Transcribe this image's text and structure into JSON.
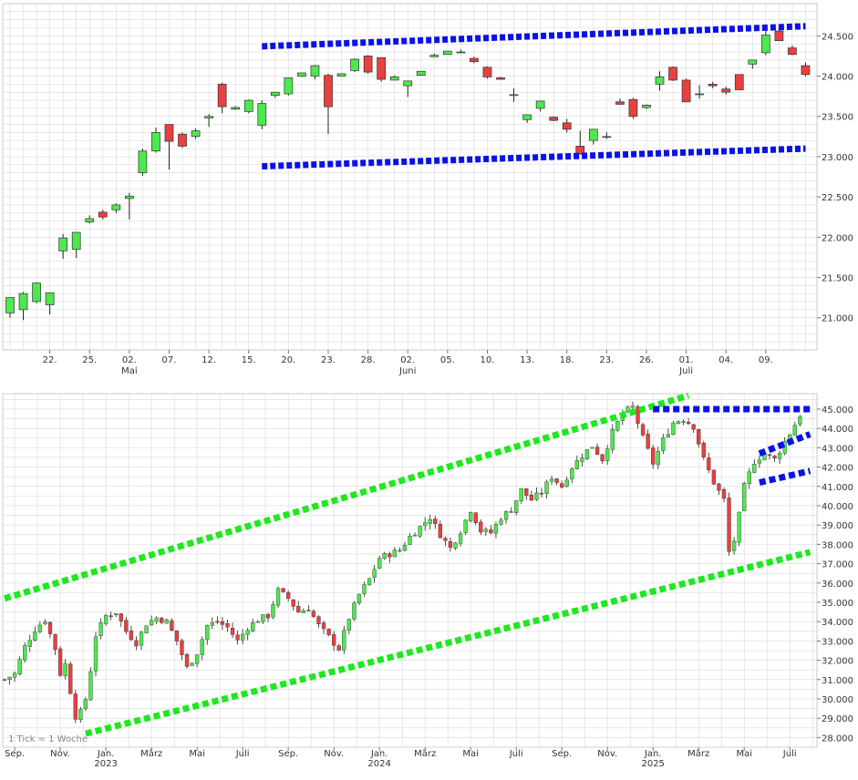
{
  "colors": {
    "bull": "#4de84d",
    "bear": "#e84040",
    "wick": "#222222",
    "grid": "#d9d9d9",
    "frame": "#c8c8c8",
    "blue_channel": "#0a12e8",
    "green_channel": "#1ee81e"
  },
  "chart_data": [
    {
      "type": "candlestick",
      "panel": "top",
      "yaxis_side": "right",
      "ylim": [
        20600,
        24900
      ],
      "grid": true,
      "y_ticks": [
        21000,
        21500,
        22000,
        22500,
        23000,
        23500,
        24000,
        24500
      ],
      "y_tick_labels": [
        "21.000",
        "21.500",
        "22.000",
        "22.500",
        "23.000",
        "23.500",
        "24.000",
        "24.500"
      ],
      "x_tick_labels": [
        {
          "day": "22.",
          "month": "",
          "i": 3
        },
        {
          "day": "25.",
          "month": "",
          "i": 6
        },
        {
          "day": "02.",
          "month": "Mai",
          "i": 9
        },
        {
          "day": "07.",
          "month": "",
          "i": 12
        },
        {
          "day": "12.",
          "month": "",
          "i": 15
        },
        {
          "day": "15.",
          "month": "",
          "i": 18
        },
        {
          "day": "20.",
          "month": "",
          "i": 21
        },
        {
          "day": "23.",
          "month": "",
          "i": 24
        },
        {
          "day": "28.",
          "month": "",
          "i": 27
        },
        {
          "day": "02.",
          "month": "Juni",
          "i": 30
        },
        {
          "day": "05.",
          "month": "",
          "i": 33
        },
        {
          "day": "10.",
          "month": "",
          "i": 36
        },
        {
          "day": "13.",
          "month": "",
          "i": 39
        },
        {
          "day": "18.",
          "month": "",
          "i": 42
        },
        {
          "day": "23.",
          "month": "",
          "i": 45
        },
        {
          "day": "26.",
          "month": "",
          "i": 48
        },
        {
          "day": "01.",
          "month": "Juli",
          "i": 51
        },
        {
          "day": "04.",
          "month": "",
          "i": 54
        },
        {
          "day": "09.",
          "month": "",
          "i": 57
        }
      ],
      "candles": [
        [
          21060,
          21250,
          21000,
          21250
        ],
        [
          21100,
          21320,
          20970,
          21300
        ],
        [
          21200,
          21440,
          21180,
          21430
        ],
        [
          21160,
          21300,
          21040,
          21310
        ],
        [
          21830,
          22040,
          21730,
          21990
        ],
        [
          21850,
          22060,
          21740,
          22060
        ],
        [
          22190,
          22270,
          22170,
          22230
        ],
        [
          22310,
          22340,
          22220,
          22250
        ],
        [
          22340,
          22420,
          22300,
          22400
        ],
        [
          22480,
          22550,
          22220,
          22510
        ],
        [
          22800,
          23100,
          22760,
          23070
        ],
        [
          23070,
          23360,
          23050,
          23300
        ],
        [
          23400,
          23400,
          22840,
          23190
        ],
        [
          23280,
          23300,
          23110,
          23130
        ],
        [
          23250,
          23350,
          23220,
          23320
        ],
        [
          23480,
          23530,
          23370,
          23500
        ],
        [
          23900,
          23920,
          23540,
          23620
        ],
        [
          23590,
          23630,
          23580,
          23610
        ],
        [
          23560,
          23710,
          23540,
          23700
        ],
        [
          23390,
          23700,
          23340,
          23660
        ],
        [
          23760,
          23760,
          23730,
          23800
        ],
        [
          23780,
          23970,
          23760,
          23980
        ],
        [
          24000,
          24020,
          23990,
          24040
        ],
        [
          24000,
          24140,
          23960,
          24130
        ],
        [
          24010,
          24030,
          23280,
          23620
        ],
        [
          24000,
          24030,
          24010,
          24030
        ],
        [
          24070,
          24220,
          24050,
          24210
        ],
        [
          24250,
          24260,
          24030,
          24050
        ],
        [
          24230,
          24230,
          23930,
          23960
        ],
        [
          23950,
          24010,
          23950,
          23990
        ],
        [
          23880,
          23940,
          23740,
          23940
        ],
        [
          24010,
          24050,
          24020,
          24060
        ],
        [
          24240,
          24280,
          24240,
          24260
        ],
        [
          24270,
          24300,
          24300,
          24310
        ],
        [
          24300,
          24330,
          24290,
          24300
        ],
        [
          24220,
          24240,
          24160,
          24180
        ],
        [
          24110,
          24120,
          23970,
          23990
        ],
        [
          23980,
          23990,
          23960,
          23960
        ],
        [
          23770,
          23850,
          23680,
          23770
        ],
        [
          23460,
          23520,
          23420,
          23520
        ],
        [
          23600,
          23680,
          23560,
          23690
        ],
        [
          23490,
          23500,
          23440,
          23450
        ],
        [
          23420,
          23470,
          23300,
          23340
        ],
        [
          23130,
          23320,
          23050,
          23030
        ],
        [
          23200,
          23330,
          23150,
          23340
        ],
        [
          23250,
          23300,
          23220,
          23250
        ],
        [
          23680,
          23720,
          23660,
          23650
        ],
        [
          23710,
          23730,
          23470,
          23500
        ],
        [
          23610,
          23650,
          23590,
          23640
        ],
        [
          23900,
          24060,
          23820,
          23990
        ],
        [
          24110,
          24120,
          23940,
          23950
        ],
        [
          23950,
          23970,
          23680,
          23680
        ],
        [
          23780,
          23890,
          23720,
          23780
        ],
        [
          23900,
          23930,
          23850,
          23880
        ],
        [
          23840,
          23870,
          23770,
          23800
        ],
        [
          24020,
          24020,
          23840,
          23830
        ],
        [
          24150,
          24160,
          24090,
          24200
        ],
        [
          24290,
          24590,
          24260,
          24510
        ],
        [
          24560,
          24600,
          24450,
          24440
        ],
        [
          24350,
          24380,
          24260,
          24270
        ],
        [
          24130,
          24170,
          24000,
          24020
        ]
      ],
      "trend_lines": [
        {
          "color": "blue",
          "from": [
            19,
            24370
          ],
          "to": [
            60,
            24620
          ]
        },
        {
          "color": "blue",
          "from": [
            19,
            22880
          ],
          "to": [
            60,
            23100
          ]
        }
      ]
    },
    {
      "type": "candlestick",
      "panel": "bottom",
      "yaxis_side": "right",
      "ylim": [
        27500,
        45800
      ],
      "grid": true,
      "y_ticks": [
        28000,
        29000,
        30000,
        31000,
        32000,
        33000,
        34000,
        35000,
        36000,
        37000,
        38000,
        39000,
        40000,
        41000,
        42000,
        43000,
        44000,
        45000
      ],
      "y_tick_labels": [
        "28.000",
        "29.000",
        "30.000",
        "31.000",
        "32.000",
        "33.000",
        "34.000",
        "35.000",
        "36.000",
        "37.000",
        "38.000",
        "39.000",
        "40.000",
        "41.000",
        "42.000",
        "43.000",
        "44.000",
        "45.000"
      ],
      "x_tick_labels": [
        {
          "label": "Sep.",
          "year": "",
          "t": 2
        },
        {
          "label": "Nov.",
          "year": "",
          "t": 11
        },
        {
          "label": "Jan.",
          "year": "2023",
          "t": 20
        },
        {
          "label": "März",
          "year": "",
          "t": 29
        },
        {
          "label": "Mai",
          "year": "",
          "t": 38
        },
        {
          "label": "Juli",
          "year": "",
          "t": 47
        },
        {
          "label": "Sep.",
          "year": "",
          "t": 56
        },
        {
          "label": "Nov.",
          "year": "",
          "t": 65
        },
        {
          "label": "Jan.",
          "year": "2024",
          "t": 74
        },
        {
          "label": "März",
          "year": "",
          "t": 83
        },
        {
          "label": "Mai",
          "year": "",
          "t": 92
        },
        {
          "label": "Juli",
          "year": "",
          "t": 101
        },
        {
          "label": "Sep.",
          "year": "",
          "t": 110
        },
        {
          "label": "Nov.",
          "year": "",
          "t": 119
        },
        {
          "label": "Jan.",
          "year": "2025",
          "t": 128
        },
        {
          "label": "März",
          "year": "",
          "t": 137
        },
        {
          "label": "Mai",
          "year": "",
          "t": 146
        },
        {
          "label": "Juli",
          "year": "",
          "t": 155
        }
      ],
      "note": "1 Tick = 1 Woche",
      "close_path": [
        [
          0,
          31000
        ],
        [
          2,
          31300
        ],
        [
          4,
          32700
        ],
        [
          6,
          33600
        ],
        [
          8,
          34100
        ],
        [
          10,
          32600
        ],
        [
          11,
          31300
        ],
        [
          12,
          31800
        ],
        [
          13,
          30400
        ],
        [
          14,
          29100
        ],
        [
          15,
          29300
        ],
        [
          16,
          30000
        ],
        [
          17,
          31500
        ],
        [
          18,
          33300
        ],
        [
          20,
          34300
        ],
        [
          22,
          34500
        ],
        [
          24,
          33500
        ],
        [
          26,
          32900
        ],
        [
          28,
          33900
        ],
        [
          30,
          34200
        ],
        [
          32,
          34000
        ],
        [
          34,
          33000
        ],
        [
          36,
          31600
        ],
        [
          38,
          32400
        ],
        [
          40,
          33800
        ],
        [
          42,
          34000
        ],
        [
          44,
          33700
        ],
        [
          46,
          33000
        ],
        [
          48,
          33700
        ],
        [
          50,
          34100
        ],
        [
          52,
          34300
        ],
        [
          54,
          35600
        ],
        [
          56,
          35200
        ],
        [
          58,
          34500
        ],
        [
          60,
          34700
        ],
        [
          62,
          33800
        ],
        [
          64,
          33200
        ],
        [
          66,
          32600
        ],
        [
          68,
          34200
        ],
        [
          70,
          35400
        ],
        [
          72,
          36200
        ],
        [
          74,
          37300
        ],
        [
          76,
          37500
        ],
        [
          78,
          37700
        ],
        [
          80,
          38400
        ],
        [
          82,
          38900
        ],
        [
          84,
          39400
        ],
        [
          86,
          38500
        ],
        [
          88,
          37800
        ],
        [
          90,
          38700
        ],
        [
          92,
          39800
        ],
        [
          94,
          38700
        ],
        [
          96,
          38600
        ],
        [
          98,
          39400
        ],
        [
          100,
          39800
        ],
        [
          102,
          40800
        ],
        [
          104,
          40300
        ],
        [
          106,
          40700
        ],
        [
          108,
          41500
        ],
        [
          110,
          41000
        ],
        [
          112,
          42000
        ],
        [
          114,
          42600
        ],
        [
          116,
          43100
        ],
        [
          118,
          42400
        ],
        [
          120,
          43800
        ],
        [
          122,
          44800
        ],
        [
          124,
          45100
        ],
        [
          126,
          43500
        ],
        [
          128,
          42200
        ],
        [
          130,
          43400
        ],
        [
          132,
          44300
        ],
        [
          134,
          44500
        ],
        [
          136,
          44100
        ],
        [
          138,
          42400
        ],
        [
          140,
          41200
        ],
        [
          142,
          40300
        ],
        [
          143,
          37600
        ],
        [
          144,
          38200
        ],
        [
          145,
          39500
        ],
        [
          146,
          41000
        ],
        [
          148,
          42300
        ],
        [
          150,
          42700
        ],
        [
          152,
          42400
        ],
        [
          154,
          43300
        ],
        [
          156,
          44200
        ],
        [
          157,
          44700
        ]
      ],
      "trend_lines": [
        {
          "color": "green",
          "from": [
            0,
            35200
          ],
          "to": [
            135,
            45700
          ]
        },
        {
          "color": "green",
          "from": [
            16,
            28200
          ],
          "to": [
            159,
            37600
          ]
        },
        {
          "color": "blue",
          "from": [
            128,
            45000
          ],
          "to": [
            159,
            45000
          ]
        },
        {
          "color": "blue",
          "from": [
            149,
            42700
          ],
          "to": [
            159,
            43700
          ]
        },
        {
          "color": "blue",
          "from": [
            149,
            41200
          ],
          "to": [
            159,
            41800
          ]
        }
      ]
    }
  ]
}
